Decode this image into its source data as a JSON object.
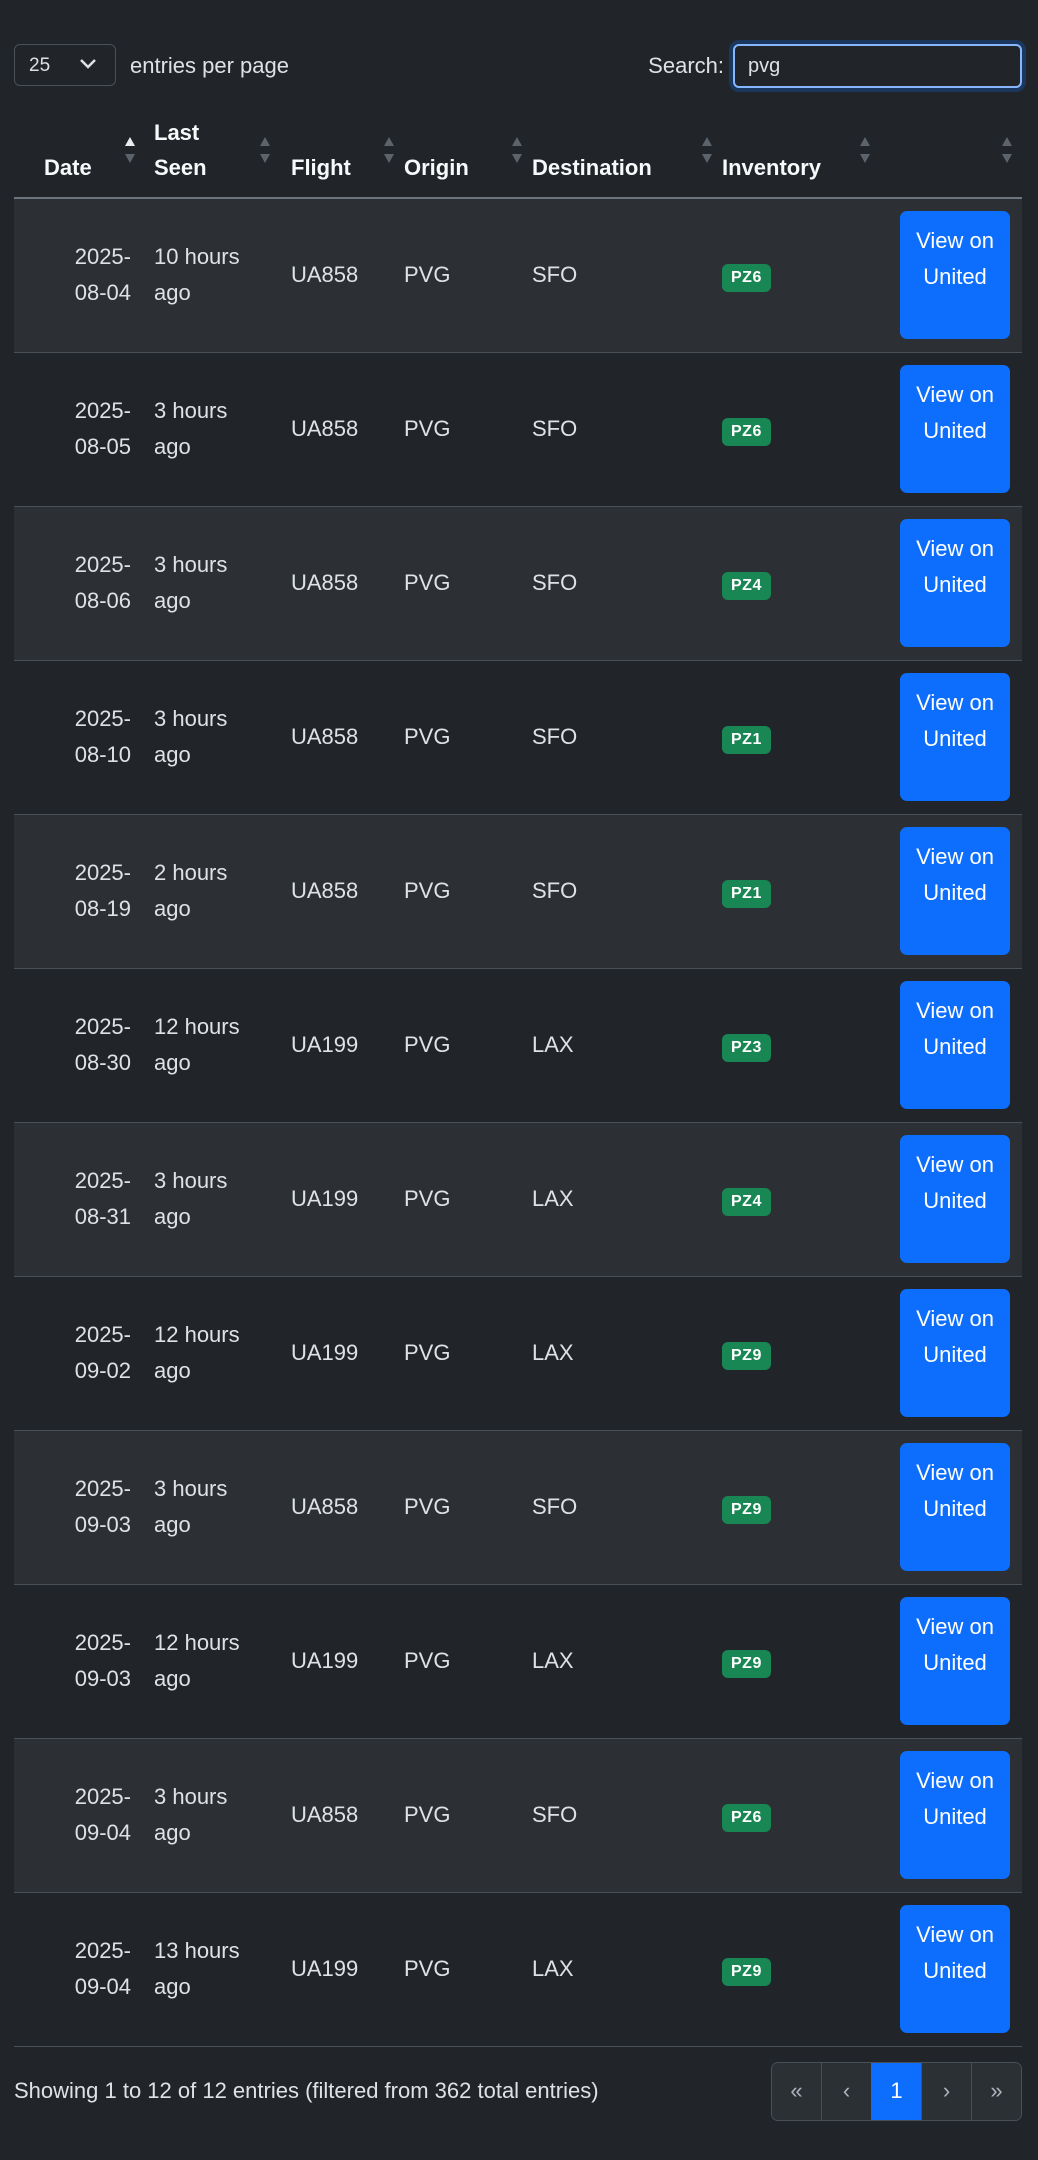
{
  "controls": {
    "page_length": "25",
    "entries_label": "entries per page",
    "search_label": "Search:",
    "search_value": "pvg"
  },
  "table": {
    "headers": [
      "Date",
      "Last Seen",
      "Flight",
      "Origin",
      "Destination",
      "Inventory"
    ],
    "rows": [
      [
        "2025-08-04",
        "10 hours ago",
        "UA858",
        "PVG",
        "SFO",
        "PZ6",
        "View on United"
      ],
      [
        "2025-08-05",
        "3 hours ago",
        "UA858",
        "PVG",
        "SFO",
        "PZ6",
        "View on United"
      ],
      [
        "2025-08-06",
        "3 hours ago",
        "UA858",
        "PVG",
        "SFO",
        "PZ4",
        "View on United"
      ],
      [
        "2025-08-10",
        "3 hours ago",
        "UA858",
        "PVG",
        "SFO",
        "PZ1",
        "View on United"
      ],
      [
        "2025-08-19",
        "2 hours ago",
        "UA858",
        "PVG",
        "SFO",
        "PZ1",
        "View on United"
      ],
      [
        "2025-08-30",
        "12 hours ago",
        "UA199",
        "PVG",
        "LAX",
        "PZ3",
        "View on United"
      ],
      [
        "2025-08-31",
        "3 hours ago",
        "UA199",
        "PVG",
        "LAX",
        "PZ4",
        "View on United"
      ],
      [
        "2025-09-02",
        "12 hours ago",
        "UA199",
        "PVG",
        "LAX",
        "PZ9",
        "View on United"
      ],
      [
        "2025-09-03",
        "3 hours ago",
        "UA858",
        "PVG",
        "SFO",
        "PZ9",
        "View on United"
      ],
      [
        "2025-09-03",
        "12 hours ago",
        "UA199",
        "PVG",
        "LAX",
        "PZ9",
        "View on United"
      ],
      [
        "2025-09-04",
        "3 hours ago",
        "UA858",
        "PVG",
        "SFO",
        "PZ6",
        "View on United"
      ],
      [
        "2025-09-04",
        "13 hours ago",
        "UA199",
        "PVG",
        "LAX",
        "PZ9",
        "View on United"
      ]
    ]
  },
  "footer": {
    "info": "Showing 1 to 12 of 12 entries (filtered from 362 total entries)",
    "pagination": [
      "«",
      "‹",
      "1",
      "›",
      "»"
    ]
  }
}
